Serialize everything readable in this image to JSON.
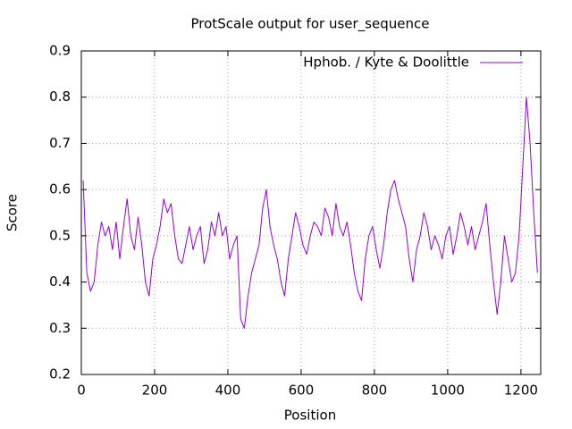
{
  "chart_data": {
    "type": "line",
    "title": "ProtScale output for user_sequence",
    "x_label": "Position",
    "y_label": "Score",
    "xlim": [
      0,
      1254
    ],
    "ylim": [
      0.2,
      0.9
    ],
    "xticks": [
      0,
      200,
      400,
      600,
      800,
      1000,
      1200
    ],
    "yticks": [
      0.2,
      0.3,
      0.4,
      0.5,
      0.6,
      0.7,
      0.8,
      0.9
    ],
    "grid": true,
    "legend": "top-right",
    "x": [
      5,
      15,
      25,
      35,
      45,
      55,
      65,
      75,
      85,
      95,
      105,
      115,
      125,
      135,
      145,
      155,
      165,
      175,
      185,
      195,
      205,
      215,
      225,
      235,
      245,
      255,
      265,
      275,
      285,
      295,
      305,
      315,
      325,
      335,
      345,
      355,
      365,
      375,
      385,
      395,
      405,
      415,
      425,
      435,
      445,
      455,
      465,
      475,
      485,
      495,
      505,
      515,
      525,
      535,
      545,
      555,
      565,
      575,
      585,
      595,
      605,
      615,
      625,
      635,
      645,
      655,
      665,
      675,
      685,
      695,
      705,
      715,
      725,
      735,
      745,
      755,
      765,
      775,
      785,
      795,
      805,
      815,
      825,
      835,
      845,
      855,
      865,
      875,
      885,
      895,
      905,
      915,
      925,
      935,
      945,
      955,
      965,
      975,
      985,
      995,
      1005,
      1015,
      1025,
      1035,
      1045,
      1055,
      1065,
      1075,
      1085,
      1095,
      1105,
      1115,
      1125,
      1135,
      1145,
      1155,
      1165,
      1175,
      1185,
      1195,
      1205,
      1215,
      1225,
      1235,
      1245
    ],
    "series": [
      {
        "name": "Hphob. / Kyte & Doolittle",
        "color": "#9400d3",
        "values": [
          0.62,
          0.42,
          0.38,
          0.4,
          0.48,
          0.53,
          0.5,
          0.52,
          0.47,
          0.53,
          0.45,
          0.52,
          0.58,
          0.5,
          0.47,
          0.54,
          0.48,
          0.4,
          0.37,
          0.45,
          0.48,
          0.52,
          0.58,
          0.55,
          0.57,
          0.5,
          0.45,
          0.44,
          0.48,
          0.52,
          0.47,
          0.5,
          0.52,
          0.44,
          0.47,
          0.53,
          0.5,
          0.55,
          0.5,
          0.52,
          0.45,
          0.48,
          0.5,
          0.32,
          0.3,
          0.37,
          0.42,
          0.45,
          0.48,
          0.56,
          0.6,
          0.52,
          0.48,
          0.45,
          0.4,
          0.37,
          0.45,
          0.5,
          0.55,
          0.52,
          0.48,
          0.46,
          0.5,
          0.53,
          0.52,
          0.5,
          0.56,
          0.54,
          0.5,
          0.57,
          0.52,
          0.5,
          0.53,
          0.48,
          0.42,
          0.38,
          0.36,
          0.45,
          0.5,
          0.52,
          0.47,
          0.43,
          0.48,
          0.55,
          0.6,
          0.62,
          0.58,
          0.55,
          0.52,
          0.45,
          0.4,
          0.47,
          0.5,
          0.55,
          0.52,
          0.47,
          0.5,
          0.48,
          0.45,
          0.5,
          0.52,
          0.46,
          0.5,
          0.55,
          0.52,
          0.48,
          0.52,
          0.47,
          0.5,
          0.53,
          0.57,
          0.48,
          0.4,
          0.33,
          0.4,
          0.5,
          0.45,
          0.4,
          0.42,
          0.5,
          0.65,
          0.8,
          0.7,
          0.55,
          0.42
        ]
      }
    ]
  }
}
